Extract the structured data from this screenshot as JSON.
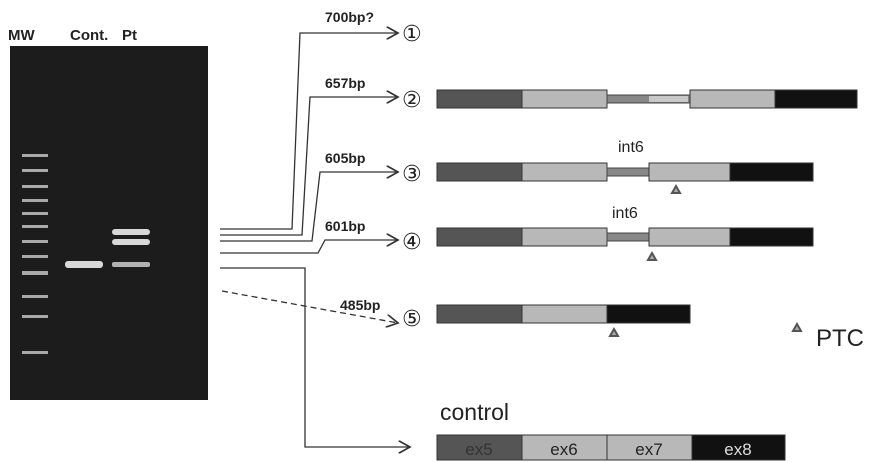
{
  "lanes": [
    "MW",
    "Cont.",
    "Pt"
  ],
  "products": [
    {
      "size": "700bp?",
      "number": "①"
    },
    {
      "size": "657bp",
      "number": "②"
    },
    {
      "size": "605bp",
      "number": "③"
    },
    {
      "size": "601bp",
      "number": "④"
    },
    {
      "size": "485bp",
      "number": "⑤"
    }
  ],
  "intron_labels": [
    "int6",
    "int6"
  ],
  "legend": "PTC",
  "control": {
    "title": "control",
    "exons": [
      "ex5",
      "ex6",
      "ex7",
      "ex8"
    ]
  }
}
